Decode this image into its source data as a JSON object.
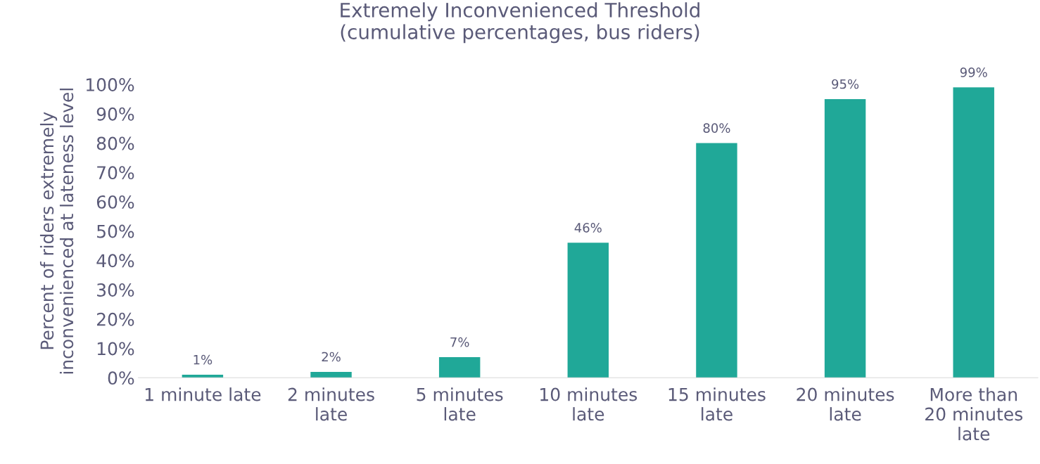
{
  "chart_data": {
    "type": "bar",
    "title": "Extremely Inconvenienced Threshold\n(cumulative percentages, bus riders)",
    "ylabel": "Percent of riders extremely\ninconvenienced at lateness level",
    "categories": [
      "1 minute late",
      "2 minutes\nlate",
      "5 minutes\nlate",
      "10 minutes\nlate",
      "15 minutes\nlate",
      "20 minutes\nlate",
      "More than\n20 minutes\nlate"
    ],
    "values": [
      1,
      2,
      7,
      46,
      80,
      95,
      99
    ],
    "value_labels": [
      "1%",
      "2%",
      "7%",
      "46%",
      "80%",
      "95%",
      "99%"
    ],
    "color": "#20a898",
    "ylim": [
      0,
      100
    ],
    "yticks": [
      {
        "value": 0,
        "label": "0%"
      },
      {
        "value": 10,
        "label": "10%"
      },
      {
        "value": 20,
        "label": "20%"
      },
      {
        "value": 30,
        "label": "30%"
      },
      {
        "value": 40,
        "label": "40%"
      },
      {
        "value": 50,
        "label": "50%"
      },
      {
        "value": 60,
        "label": "60%"
      },
      {
        "value": 70,
        "label": "70%"
      },
      {
        "value": 80,
        "label": "80%"
      },
      {
        "value": 90,
        "label": "90%"
      },
      {
        "value": 100,
        "label": "100%"
      }
    ],
    "grid": false,
    "legend": false
  }
}
